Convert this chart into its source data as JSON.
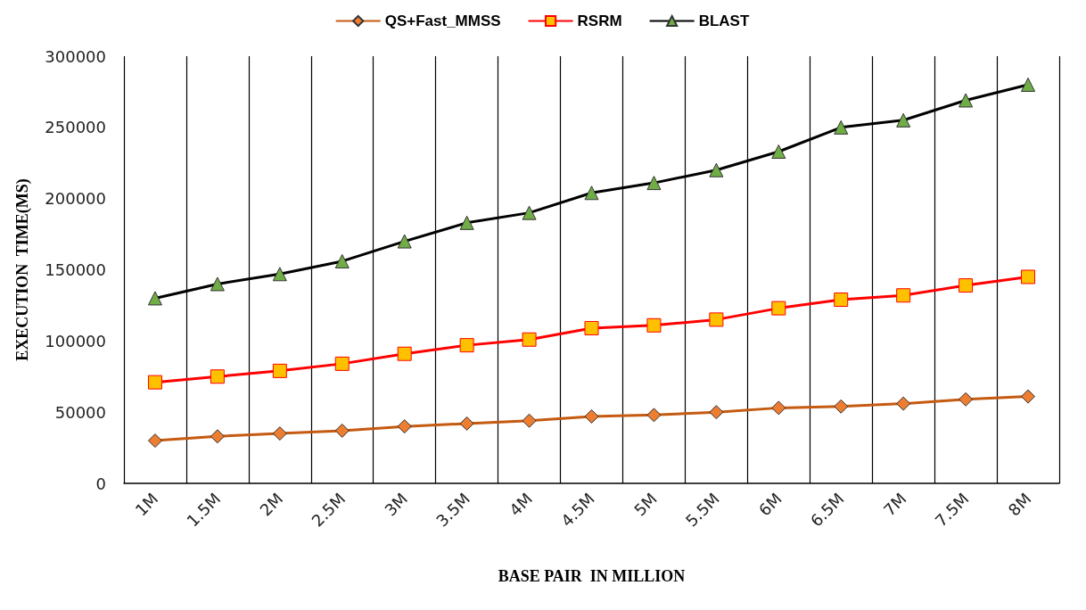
{
  "chart_data": {
    "type": "line",
    "xlabel": "BASE PAIR  IN MILLION",
    "ylabel": "EXECUTION  TIME(MS)",
    "categories": [
      "1M",
      "1.5M",
      "2M",
      "2.5M",
      "3M",
      "3.5M",
      "4M",
      "4.5M",
      "5M",
      "5.5M",
      "6M",
      "6.5M",
      "7M",
      "7.5M",
      "8M"
    ],
    "series": [
      {
        "name": "QS+Fast_MMSS",
        "color": "#c55a11",
        "marker": "diamond",
        "values": [
          30000,
          33000,
          35000,
          37000,
          40000,
          42000,
          44000,
          47000,
          48000,
          50000,
          53000,
          54000,
          56000,
          59000,
          61000
        ]
      },
      {
        "name": "RSRM",
        "color": "#ff0000",
        "marker": "square",
        "values": [
          71000,
          75000,
          79000,
          84000,
          91000,
          97000,
          101000,
          109000,
          111000,
          115000,
          123000,
          129000,
          132000,
          139000,
          145000
        ]
      },
      {
        "name": "BLAST",
        "color": "#000000",
        "marker": "triangle",
        "values": [
          130000,
          140000,
          147000,
          156000,
          170000,
          183000,
          190000,
          204000,
          211000,
          220000,
          233000,
          250000,
          255000,
          269000,
          280000
        ]
      }
    ],
    "ylim": [
      0,
      300000
    ],
    "yticks": [
      0,
      50000,
      100000,
      150000,
      200000,
      250000,
      300000
    ],
    "grid": "x",
    "legend": "top"
  }
}
